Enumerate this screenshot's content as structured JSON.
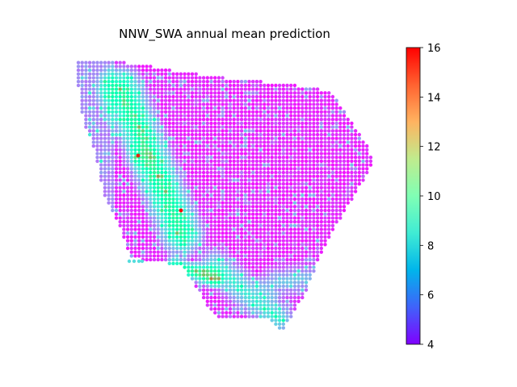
{
  "chart_data": {
    "type": "scatter",
    "title": "NNW_SWA annual mean prediction",
    "xlabel": "",
    "ylabel": "",
    "axes_visible": false,
    "grid": false,
    "legend": "none",
    "colormap": "rainbow",
    "colorbar": {
      "location": "right",
      "range": [
        4,
        16
      ],
      "ticks": [
        "4",
        "6",
        "8",
        "10",
        "12",
        "14",
        "16"
      ]
    },
    "value_range": [
      4,
      16
    ],
    "notes_hotspots": [
      {
        "value": 15.5
      },
      {
        "value": 16
      }
    ]
  },
  "colors": {
    "low": "#8000ff",
    "mid": "#2adddd",
    "high": "#ff0000"
  }
}
